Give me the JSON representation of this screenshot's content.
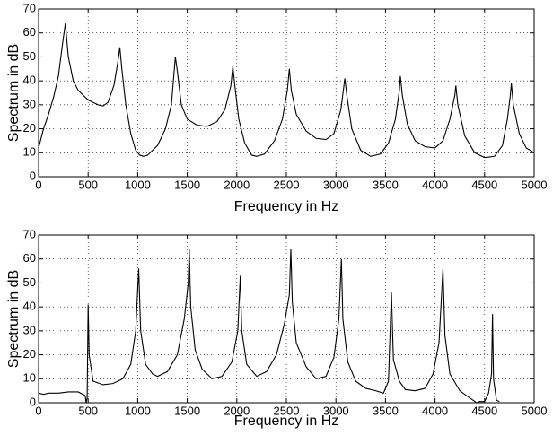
{
  "chart_data": [
    {
      "type": "line",
      "xlabel": "Frequency in Hz",
      "ylabel": "Spectrum in dB",
      "color": "#000000",
      "grid": true,
      "xlim": [
        0,
        5000
      ],
      "ylim": [
        0,
        70
      ],
      "xticks": [
        0,
        500,
        1000,
        1500,
        2000,
        2500,
        3000,
        3500,
        4000,
        4500,
        5000
      ],
      "yticks": [
        0,
        10,
        20,
        30,
        40,
        50,
        60,
        70
      ],
      "x": [
        0,
        50,
        100,
        150,
        200,
        240,
        270,
        300,
        350,
        400,
        500,
        600,
        650,
        700,
        760,
        800,
        820,
        840,
        880,
        930,
        980,
        1020,
        1060,
        1100,
        1200,
        1280,
        1340,
        1380,
        1400,
        1440,
        1500,
        1600,
        1700,
        1800,
        1880,
        1940,
        1960,
        1980,
        2020,
        2080,
        2150,
        2200,
        2280,
        2380,
        2460,
        2510,
        2530,
        2550,
        2600,
        2700,
        2800,
        2900,
        2980,
        3050,
        3090,
        3110,
        3160,
        3250,
        3350,
        3450,
        3530,
        3600,
        3640,
        3650,
        3670,
        3720,
        3800,
        3900,
        4000,
        4080,
        4150,
        4200,
        4210,
        4230,
        4300,
        4400,
        4500,
        4600,
        4680,
        4730,
        4760,
        4770,
        4790,
        4850,
        4920,
        5000
      ],
      "values": [
        12,
        20,
        26,
        33,
        42,
        55,
        64,
        50,
        40,
        36,
        32,
        30,
        29.5,
        31,
        38,
        48,
        54,
        45,
        30,
        18,
        11,
        9,
        8.5,
        9,
        13,
        20,
        30,
        50,
        44,
        30,
        24,
        21.5,
        21,
        23,
        28,
        38,
        46,
        38,
        24,
        14,
        9,
        8.5,
        9.5,
        15,
        24,
        36,
        45,
        36,
        26,
        19,
        16,
        15.5,
        18,
        28,
        41,
        34,
        20,
        11,
        8.5,
        9.5,
        14,
        24,
        36,
        42,
        34,
        22,
        15,
        12.5,
        12,
        15,
        24,
        34,
        38,
        30,
        17,
        10,
        8,
        8.5,
        13,
        24,
        34,
        39,
        30,
        18,
        12,
        10
      ]
    },
    {
      "type": "line",
      "xlabel": "Frequency in Hz",
      "ylabel": "Spectrum in dB",
      "color": "#000000",
      "grid": true,
      "xlim": [
        0,
        5000
      ],
      "ylim": [
        0,
        70
      ],
      "xticks": [
        0,
        500,
        1000,
        1500,
        2000,
        2500,
        3000,
        3500,
        4000,
        4500,
        5000
      ],
      "yticks": [
        0,
        10,
        20,
        30,
        40,
        50,
        60,
        70
      ],
      "x": [
        0,
        50,
        100,
        200,
        300,
        400,
        470,
        480,
        490,
        500,
        510,
        550,
        650,
        750,
        850,
        930,
        980,
        1010,
        1030,
        1080,
        1150,
        1200,
        1300,
        1400,
        1470,
        1510,
        1520,
        1535,
        1580,
        1650,
        1750,
        1850,
        1950,
        2010,
        2035,
        2050,
        2100,
        2200,
        2300,
        2400,
        2480,
        2530,
        2545,
        2560,
        2600,
        2700,
        2800,
        2900,
        2980,
        3030,
        3055,
        3070,
        3120,
        3200,
        3300,
        3400,
        3480,
        3530,
        3560,
        3580,
        3640,
        3700,
        3800,
        3900,
        3980,
        4040,
        4080,
        4100,
        4150,
        4250,
        4350,
        4420,
        4450,
        4500,
        4540,
        4570,
        4580,
        4590,
        4620,
        4650
      ],
      "values": [
        4,
        3.5,
        4,
        4,
        4.5,
        4.5,
        3,
        0,
        2,
        41,
        20,
        9,
        7.5,
        8,
        10,
        16,
        30,
        56,
        30,
        16,
        12,
        11,
        13,
        20,
        35,
        50,
        64,
        40,
        22,
        14,
        10,
        11,
        17,
        30,
        53,
        30,
        16,
        11,
        13,
        20,
        33,
        45,
        64,
        42,
        25,
        15,
        10,
        11,
        19,
        35,
        60,
        35,
        17,
        9,
        6,
        5,
        4,
        9,
        46,
        18,
        9,
        5.5,
        5,
        6,
        12,
        25,
        56,
        28,
        12,
        5,
        2,
        0,
        0.5,
        0.5,
        4,
        12,
        37,
        10,
        1,
        0.5
      ]
    }
  ]
}
